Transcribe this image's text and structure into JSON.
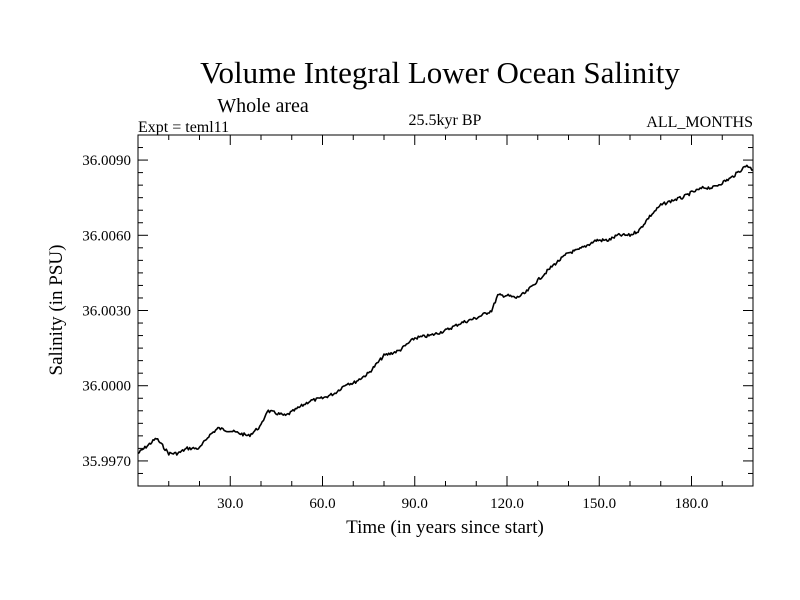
{
  "chart_data": {
    "type": "line",
    "title": "Volume Integral Lower Ocean Salinity",
    "subtitle": "Whole area",
    "experiment": "Expt = teml11",
    "period": "25.5kyr BP",
    "months": "ALL_MONTHS",
    "xlabel": "Time (in years since start)",
    "ylabel": "Salinity (in PSU)",
    "xlim": [
      0,
      200
    ],
    "ylim": [
      35.996,
      36.01
    ],
    "xticks": [
      30,
      60,
      90,
      120,
      150,
      180
    ],
    "xtick_labels": [
      "30.0",
      "60.0",
      "90.0",
      "120.0",
      "150.0",
      "180.0"
    ],
    "yticks": [
      35.997,
      36.0,
      36.003,
      36.006,
      36.009
    ],
    "ytick_labels": [
      "35.9970",
      "36.0000",
      "36.0030",
      "36.0060",
      "36.0090"
    ],
    "grid": false,
    "series": [
      {
        "name": "Salinity",
        "color": "#000000",
        "x": [
          0,
          3,
          6,
          10,
          13,
          16,
          20,
          23,
          26,
          30,
          33,
          36,
          40,
          42,
          45,
          48,
          52,
          56,
          60,
          64,
          68,
          70,
          75,
          80,
          85,
          90,
          95,
          100,
          105,
          110,
          115,
          117,
          120,
          123,
          126,
          130,
          135,
          140,
          143,
          146,
          149,
          150,
          153,
          156,
          160,
          163,
          166,
          170,
          174,
          177,
          180,
          184,
          187,
          190,
          193,
          196,
          198,
          200
        ],
        "values": [
          35.9973,
          35.9976,
          35.9979,
          35.9973,
          35.9973,
          35.9975,
          35.9975,
          35.998,
          35.9983,
          35.9982,
          35.9981,
          35.998,
          35.9984,
          35.999,
          35.9989,
          35.9988,
          35.9991,
          35.9994,
          35.9995,
          35.9997,
          36.0001,
          36.0001,
          36.0005,
          36.0012,
          36.0014,
          36.0019,
          36.002,
          36.0022,
          36.0025,
          36.0027,
          36.003,
          36.0036,
          36.0036,
          36.0035,
          36.0037,
          36.0042,
          36.0048,
          36.0053,
          36.0054,
          36.0056,
          36.0058,
          36.0058,
          36.0058,
          36.006,
          36.006,
          36.0062,
          36.0067,
          36.0072,
          36.0074,
          36.0075,
          36.0077,
          36.0079,
          36.0079,
          36.0081,
          36.0083,
          36.0086,
          36.0088,
          36.0086
        ]
      }
    ]
  }
}
